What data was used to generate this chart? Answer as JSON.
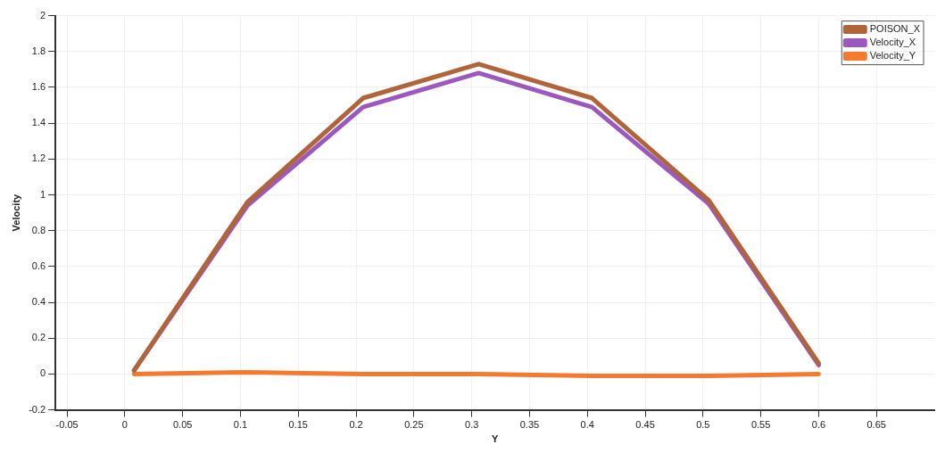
{
  "chart_data": {
    "type": "line",
    "xlabel": "Y",
    "ylabel": "Velocity",
    "xlim": [
      -0.06,
      0.7
    ],
    "ylim": [
      -0.2,
      2
    ],
    "xticks": [
      -0.05,
      0,
      0.05,
      0.1,
      0.15,
      0.2,
      0.25,
      0.3,
      0.35,
      0.4,
      0.45,
      0.5,
      0.55,
      0.6,
      0.65
    ],
    "yticks": [
      -0.2,
      0,
      0.2,
      0.4,
      0.6,
      0.8,
      1,
      1.2,
      1.4,
      1.6,
      1.8,
      2
    ],
    "x": [
      0.008,
      0.106,
      0.206,
      0.306,
      0.404,
      0.505,
      0.6
    ],
    "series": [
      {
        "name": "POISON_X",
        "color": "#b0643a",
        "values": [
          0.02,
          0.96,
          1.54,
          1.73,
          1.54,
          0.97,
          0.06
        ]
      },
      {
        "name": "Velocity_X",
        "color": "#9b59c0",
        "values": [
          0.02,
          0.94,
          1.49,
          1.68,
          1.49,
          0.95,
          0.05
        ]
      },
      {
        "name": "Velocity_Y",
        "color": "#f47a30",
        "values": [
          0,
          0.01,
          0,
          0,
          -0.01,
          -0.01,
          0
        ]
      }
    ],
    "grid": true,
    "legend": "top right",
    "marker": "none",
    "line_style": "solid"
  }
}
